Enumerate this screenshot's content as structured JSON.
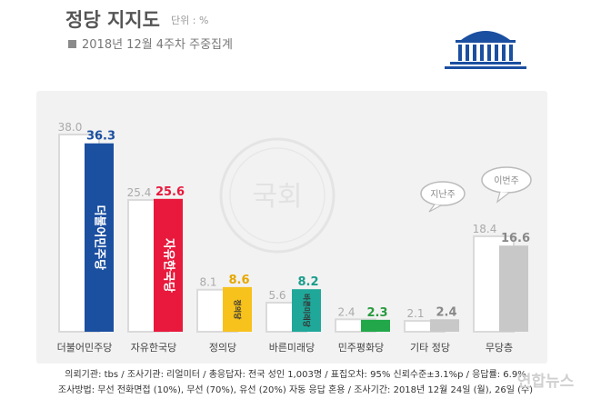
{
  "header": {
    "title": "정당 지지도",
    "unit": "단위 : %",
    "subtitle": "2018년 12월 4주차 주중집계"
  },
  "legend": {
    "previous_week": "지난주",
    "this_week": "이번주"
  },
  "watermark": "국회",
  "footer": {
    "line1": "의뢰기관: tbs / 조사기관: 리얼미터 / 총응답자: 전국 성인 1,003명 / 표집오차: 95% 신뢰수준±3.1%p / 응답률: 6.9%",
    "line2": "조사방법: 무선 전화면접 (10%), 무선 (70%), 유선 (20%) 자동 응답 혼용 / 조사기간: 2018년 12월 24일 (월), 26일 (수)",
    "source": "연합뉴스"
  },
  "chart_data": {
    "type": "bar",
    "categories": [
      "더불어민주당",
      "자유한국당",
      "정의당",
      "바른미래당",
      "민주평화당",
      "기타 정당",
      "무당층"
    ],
    "series": [
      {
        "name": "지난주",
        "values": [
          38.0,
          25.4,
          8.1,
          5.6,
          2.4,
          2.1,
          18.4
        ],
        "labels": [
          "38.0",
          "25.4",
          "8.1",
          "5.6",
          "2.4",
          "2.1",
          "18.4"
        ]
      },
      {
        "name": "이번주",
        "values": [
          36.3,
          25.6,
          8.6,
          8.2,
          2.3,
          2.4,
          16.6
        ],
        "labels": [
          "36.3",
          "25.6",
          "8.6",
          "8.2",
          "2.3",
          "2.4",
          "16.6"
        ]
      }
    ],
    "bar_logo_text": [
      "더불어민주당",
      "자유한국당",
      "정의당",
      "바른미래당",
      "",
      "",
      ""
    ],
    "colors": {
      "previous": "#ffffff",
      "previous_stroke": "#dadada",
      "current": [
        "#1b4fa0",
        "#e8193c",
        "#f7c21c",
        "#1fa89a",
        "#22a84a",
        "#c8c8c8",
        "#c8c8c8"
      ],
      "current_label": [
        "#1b4fa0",
        "#e8193c",
        "#e6a700",
        "#1a9c8c",
        "#2a9a3e",
        "#888888",
        "#888888"
      ],
      "previous_label": "#aaaaaa"
    },
    "ylim": [
      0,
      38.0
    ]
  }
}
